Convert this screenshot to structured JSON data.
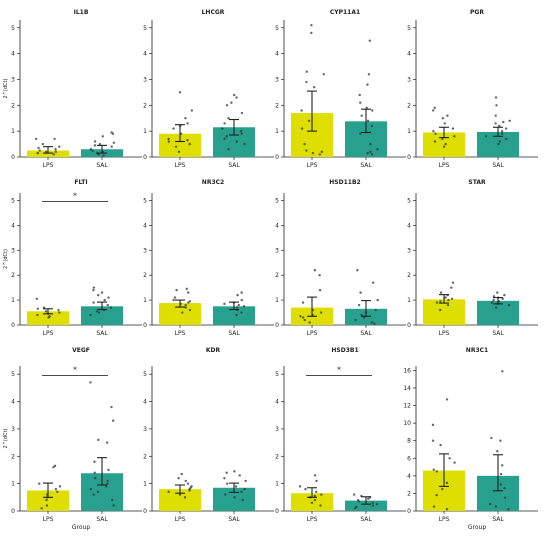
{
  "colors": {
    "LPS": "#dede00",
    "SAL": "#27a08e",
    "points": "#333333",
    "axis": "#222222",
    "error": "#222222",
    "significance": "#333333"
  },
  "chart_data": [
    {
      "type": "bar",
      "title": "IL1B",
      "categories": [
        "LPS",
        "SAL"
      ],
      "values": [
        0.25,
        0.3
      ],
      "ci": [
        [
          0.15,
          0.4
        ],
        [
          0.15,
          0.45
        ]
      ],
      "points": [
        [
          0.1,
          0.15,
          0.2,
          0.2,
          0.25,
          0.3,
          0.35,
          0.4,
          0.5,
          0.7,
          0.7
        ],
        [
          0.05,
          0.1,
          0.15,
          0.2,
          0.25,
          0.3,
          0.4,
          0.45,
          0.5,
          0.55,
          0.6,
          0.8,
          0.9,
          0.95
        ]
      ],
      "ylim": [
        0,
        5.3
      ],
      "yticks": [
        0,
        1,
        2,
        3,
        4,
        5
      ],
      "ylabel": "2^(dCt)",
      "xlabel": "",
      "significance": ""
    },
    {
      "type": "bar",
      "title": "LHCGR",
      "categories": [
        "LPS",
        "SAL"
      ],
      "values": [
        0.9,
        1.15
      ],
      "ci": [
        [
          0.6,
          1.25
        ],
        [
          0.85,
          1.45
        ]
      ],
      "points": [
        [
          0.2,
          0.4,
          0.5,
          0.6,
          0.65,
          0.7,
          0.9,
          1.1,
          1.2,
          1.3,
          1.5,
          1.8,
          2.5
        ],
        [
          0.3,
          0.5,
          0.6,
          0.7,
          0.8,
          0.9,
          1.0,
          1.1,
          1.3,
          1.5,
          1.7,
          2.0,
          2.1,
          2.3,
          2.4
        ]
      ],
      "ylim": [
        0,
        5.3
      ],
      "yticks": [
        0,
        1,
        2,
        3,
        4,
        5
      ],
      "ylabel": "",
      "xlabel": "",
      "significance": ""
    },
    {
      "type": "bar",
      "title": "CYP11A1",
      "categories": [
        "LPS",
        "SAL"
      ],
      "values": [
        1.7,
        1.38
      ],
      "ci": [
        [
          1.0,
          2.55
        ],
        [
          0.95,
          1.85
        ]
      ],
      "points": [
        [
          0.1,
          0.15,
          0.2,
          0.25,
          0.5,
          1.1,
          1.4,
          1.8,
          2.7,
          2.9,
          3.2,
          3.3,
          4.8,
          5.1
        ],
        [
          0.1,
          0.15,
          0.2,
          0.3,
          0.5,
          0.9,
          1.2,
          1.4,
          1.6,
          1.8,
          1.9,
          2.1,
          2.4,
          2.8,
          3.2,
          4.5
        ]
      ],
      "ylim": [
        0,
        5.3
      ],
      "yticks": [
        0,
        1,
        2,
        3,
        4,
        5
      ],
      "ylabel": "",
      "xlabel": "",
      "significance": ""
    },
    {
      "type": "bar",
      "title": "PGR",
      "categories": [
        "LPS",
        "SAL"
      ],
      "values": [
        0.95,
        0.97
      ],
      "ci": [
        [
          0.75,
          1.15
        ],
        [
          0.8,
          1.15
        ]
      ],
      "points": [
        [
          0.4,
          0.5,
          0.6,
          0.7,
          0.8,
          0.9,
          1.0,
          1.1,
          1.3,
          1.5,
          1.6,
          1.8,
          1.9
        ],
        [
          0.5,
          0.6,
          0.7,
          0.8,
          0.9,
          1.0,
          1.1,
          1.2,
          1.3,
          1.35,
          1.4,
          1.6,
          2.0,
          2.3
        ]
      ],
      "ylim": [
        0,
        5.3
      ],
      "yticks": [
        0,
        1,
        2,
        3,
        4,
        5
      ],
      "ylabel": "",
      "xlabel": "",
      "significance": ""
    },
    {
      "type": "bar",
      "title": "FLTI",
      "categories": [
        "LPS",
        "SAL"
      ],
      "values": [
        0.55,
        0.75
      ],
      "ci": [
        [
          0.45,
          0.65
        ],
        [
          0.62,
          0.92
        ]
      ],
      "points": [
        [
          0.3,
          0.35,
          0.4,
          0.45,
          0.5,
          0.55,
          0.6,
          0.65,
          0.7,
          1.05
        ],
        [
          0.4,
          0.5,
          0.55,
          0.6,
          0.7,
          0.8,
          0.9,
          1.0,
          1.1,
          1.2,
          1.3,
          1.4,
          1.5
        ]
      ],
      "ylim": [
        0,
        5.3
      ],
      "yticks": [
        0,
        1,
        2,
        3,
        4,
        5
      ],
      "ylabel": "2^(dCt)",
      "xlabel": "",
      "significance": "*"
    },
    {
      "type": "bar",
      "title": "NR3C2",
      "categories": [
        "LPS",
        "SAL"
      ],
      "values": [
        0.88,
        0.75
      ],
      "ci": [
        [
          0.72,
          1.0
        ],
        [
          0.62,
          0.92
        ]
      ],
      "points": [
        [
          0.5,
          0.6,
          0.7,
          0.8,
          0.85,
          0.9,
          0.95,
          1.0,
          1.1,
          1.3,
          1.4,
          1.45
        ],
        [
          0.4,
          0.5,
          0.6,
          0.7,
          0.75,
          0.8,
          0.85,
          0.9,
          1.0,
          1.2,
          1.3
        ]
      ],
      "ylim": [
        0,
        5.3
      ],
      "yticks": [
        0,
        1,
        2,
        3,
        4,
        5
      ],
      "ylabel": "",
      "xlabel": "",
      "significance": ""
    },
    {
      "type": "bar",
      "title": "HSD11B2",
      "categories": [
        "LPS",
        "SAL"
      ],
      "values": [
        0.7,
        0.65
      ],
      "ci": [
        [
          0.35,
          1.12
        ],
        [
          0.35,
          0.98
        ]
      ],
      "points": [
        [
          0.1,
          0.2,
          0.3,
          0.35,
          0.4,
          0.5,
          0.6,
          0.9,
          1.4,
          2.0,
          2.2
        ],
        [
          0.05,
          0.1,
          0.2,
          0.3,
          0.4,
          0.5,
          0.6,
          0.8,
          1.0,
          1.3,
          1.7,
          2.2
        ]
      ],
      "ylim": [
        0,
        5.3
      ],
      "yticks": [
        0,
        1,
        2,
        3,
        4,
        5
      ],
      "ylabel": "",
      "xlabel": "",
      "significance": ""
    },
    {
      "type": "bar",
      "title": "STAR",
      "categories": [
        "LPS",
        "SAL"
      ],
      "values": [
        1.03,
        0.97
      ],
      "ci": [
        [
          0.88,
          1.22
        ],
        [
          0.85,
          1.1
        ]
      ],
      "points": [
        [
          0.6,
          0.8,
          0.9,
          0.95,
          1.0,
          1.05,
          1.1,
          1.2,
          1.3,
          1.5,
          1.7
        ],
        [
          0.7,
          0.8,
          0.85,
          0.9,
          0.95,
          1.0,
          1.05,
          1.1,
          1.15,
          1.2,
          1.3
        ]
      ],
      "ylim": [
        0,
        5.3
      ],
      "yticks": [
        0,
        1,
        2,
        3,
        4,
        5
      ],
      "ylabel": "",
      "xlabel": "",
      "significance": ""
    },
    {
      "type": "bar",
      "title": "VEGF",
      "categories": [
        "LPS",
        "SAL"
      ],
      "values": [
        0.75,
        1.38
      ],
      "ci": [
        [
          0.5,
          1.02
        ],
        [
          0.95,
          1.95
        ]
      ],
      "points": [
        [
          0.1,
          0.2,
          0.4,
          0.5,
          0.6,
          0.7,
          0.8,
          0.9,
          1.0,
          1.6,
          1.65
        ],
        [
          0.2,
          0.4,
          0.6,
          0.7,
          0.8,
          0.9,
          1.0,
          1.1,
          1.2,
          1.4,
          1.5,
          1.8,
          2.5,
          2.6,
          3.3,
          3.8,
          4.7
        ]
      ],
      "ylim": [
        0,
        5.3
      ],
      "yticks": [
        0,
        1,
        2,
        3,
        4,
        5
      ],
      "ylabel": "2^(dCt)",
      "xlabel": "Group",
      "significance": "*"
    },
    {
      "type": "bar",
      "title": "KDR",
      "categories": [
        "LPS",
        "SAL"
      ],
      "values": [
        0.8,
        0.85
      ],
      "ci": [
        [
          0.65,
          0.95
        ],
        [
          0.68,
          1.02
        ]
      ],
      "points": [
        [
          0.5,
          0.6,
          0.7,
          0.75,
          0.8,
          0.85,
          0.9,
          1.0,
          1.1,
          1.2,
          1.35
        ],
        [
          0.4,
          0.5,
          0.6,
          0.7,
          0.8,
          0.9,
          1.0,
          1.1,
          1.2,
          1.3,
          1.4,
          1.45
        ]
      ],
      "ylim": [
        0,
        5.3
      ],
      "yticks": [
        0,
        1,
        2,
        3,
        4,
        5
      ],
      "ylabel": "",
      "xlabel": "",
      "significance": ""
    },
    {
      "type": "bar",
      "title": "HSD3B1",
      "categories": [
        "LPS",
        "SAL"
      ],
      "values": [
        0.65,
        0.38
      ],
      "ci": [
        [
          0.5,
          0.85
        ],
        [
          0.25,
          0.52
        ]
      ],
      "points": [
        [
          0.2,
          0.3,
          0.4,
          0.5,
          0.55,
          0.6,
          0.7,
          0.8,
          0.9,
          1.1,
          1.3
        ],
        [
          0.1,
          0.15,
          0.2,
          0.25,
          0.3,
          0.35,
          0.4,
          0.45,
          0.5,
          0.55,
          0.6
        ]
      ],
      "ylim": [
        0,
        5.3
      ],
      "yticks": [
        0,
        1,
        2,
        3,
        4,
        5
      ],
      "ylabel": "",
      "xlabel": "",
      "significance": "*"
    },
    {
      "type": "bar",
      "title": "NR3C1",
      "categories": [
        "LPS",
        "SAL"
      ],
      "values": [
        4.6,
        4.0
      ],
      "ci": [
        [
          2.8,
          6.5
        ],
        [
          2.3,
          6.4
        ]
      ],
      "points": [
        [
          0.2,
          0.5,
          1.8,
          2.5,
          3.2,
          4.5,
          4.7,
          5.5,
          6.0,
          7.5,
          8.0,
          9.8,
          12.7
        ],
        [
          0.2,
          0.5,
          0.8,
          1.5,
          2.6,
          3.0,
          4.2,
          5.2,
          6.8,
          8.0,
          8.3,
          15.9
        ]
      ],
      "ylim": [
        0,
        16.5
      ],
      "yticks": [
        0,
        2,
        4,
        6,
        8,
        10,
        12,
        14,
        16
      ],
      "ylabel": "",
      "xlabel": "Group",
      "significance": ""
    }
  ]
}
